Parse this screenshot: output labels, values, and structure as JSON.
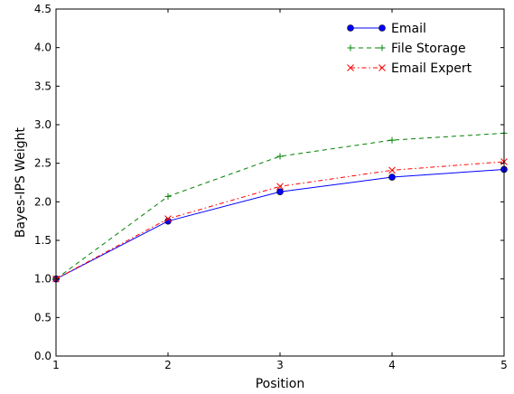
{
  "chart_data": {
    "type": "line",
    "xlabel": "Position",
    "ylabel": "Bayes-IPS Weight",
    "xlim": [
      1,
      5
    ],
    "ylim": [
      0.0,
      4.5
    ],
    "x_ticks": [
      "1",
      "2",
      "3",
      "4",
      "5"
    ],
    "y_ticks": [
      "0.0",
      "0.5",
      "1.0",
      "1.5",
      "2.0",
      "2.5",
      "3.0",
      "3.5",
      "4.0",
      "4.5"
    ],
    "x": [
      1,
      2,
      3,
      4,
      5
    ],
    "legend_position": "top-right",
    "grid": false,
    "series": [
      {
        "name": "Email",
        "values": [
          1.0,
          1.75,
          2.13,
          2.32,
          2.42
        ],
        "color": "#0000ff",
        "marker": "circle",
        "line_style": "solid"
      },
      {
        "name": "File Storage",
        "values": [
          1.0,
          2.07,
          2.59,
          2.8,
          2.89
        ],
        "color": "#008000",
        "marker": "plus",
        "line_style": "dashed"
      },
      {
        "name": "Email Expert",
        "values": [
          1.0,
          1.78,
          2.2,
          2.41,
          2.52
        ],
        "color": "#ff0000",
        "marker": "x",
        "line_style": "dashdot"
      }
    ]
  }
}
